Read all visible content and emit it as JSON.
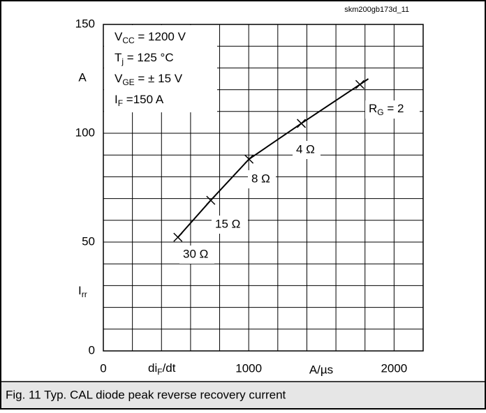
{
  "chart_data": {
    "type": "line",
    "figure_id": "skm200gb173d_11",
    "caption": "Fig. 11 Typ. CAL diode peak reverse recovery current",
    "xlim": [
      0,
      2200
    ],
    "ylim": [
      0,
      150
    ],
    "xticks": [
      0,
      1000,
      2000
    ],
    "yticks": [
      0,
      50,
      100,
      150
    ],
    "xgrid": [
      0,
      200,
      400,
      600,
      800,
      1000,
      1200,
      1400,
      1600,
      1800,
      2000,
      2200
    ],
    "ygrid": [
      0,
      10,
      20,
      30,
      40,
      50,
      60,
      70,
      80,
      90,
      100,
      110,
      120,
      130,
      140,
      150
    ],
    "x_label": {
      "symbol": "di",
      "sub": "F",
      "text": "/dt"
    },
    "x_unit": "A/µs",
    "y_label": {
      "symbol": "I",
      "sub": "rr"
    },
    "y_unit": "A",
    "conditions": [
      {
        "symbol": "V",
        "sub": "CC",
        "text": " = 1200 V"
      },
      {
        "symbol": "T",
        "sub": "j",
        "text": " = 125 °C"
      },
      {
        "symbol": "V",
        "sub": "GE",
        "text": " = ± 15 V"
      },
      {
        "symbol": "I",
        "sub": "F",
        "text": " =150 A"
      }
    ],
    "color": "#000000",
    "x": [
      513,
      739,
      1002,
      1362,
      1765,
      1823
    ],
    "y": [
      52.2,
      69.2,
      88.1,
      104.5,
      122.4,
      125
    ],
    "point_labels": [
      "30 Ω",
      "15 Ω",
      "8 Ω",
      "4 Ω",
      {
        "symbol": "R",
        "sub": "G",
        "text": " = 2"
      }
    ]
  }
}
